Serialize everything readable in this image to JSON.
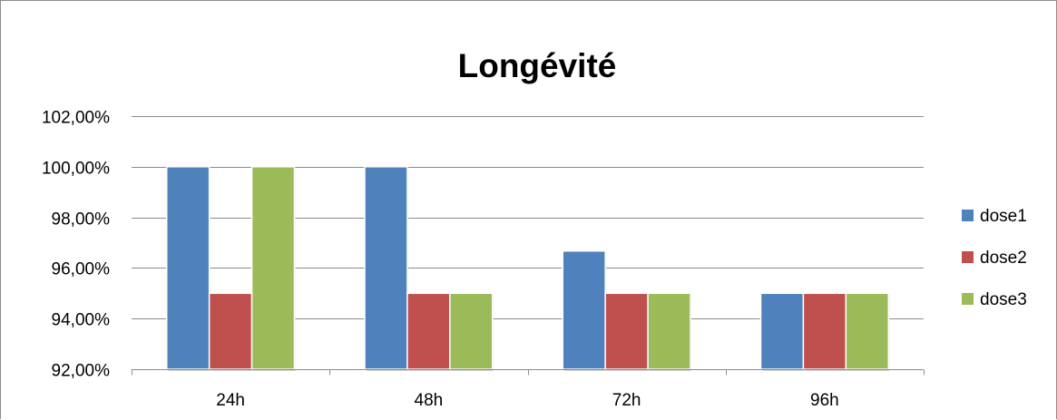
{
  "chart_data": {
    "type": "bar",
    "title": "Longévité",
    "xlabel": "",
    "ylabel": "",
    "categories": [
      "24h",
      "48h",
      "72h",
      "96h"
    ],
    "series": [
      {
        "name": "dose1",
        "color": "#4F81BD",
        "values": [
          100.0,
          100.0,
          96.67,
          95.0
        ]
      },
      {
        "name": "dose2",
        "color": "#C0504D",
        "values": [
          95.0,
          95.0,
          95.0,
          95.0
        ]
      },
      {
        "name": "dose3",
        "color": "#9BBB59",
        "values": [
          100.0,
          95.0,
          95.0,
          95.0
        ]
      }
    ],
    "ylim": [
      92,
      102
    ],
    "yticks": [
      92,
      94,
      96,
      98,
      100,
      102
    ],
    "ytick_labels": [
      "92,00%",
      "94,00%",
      "96,00%",
      "98,00%",
      "100,00%",
      "102,00%"
    ],
    "grid": true,
    "legend_position": "right"
  }
}
